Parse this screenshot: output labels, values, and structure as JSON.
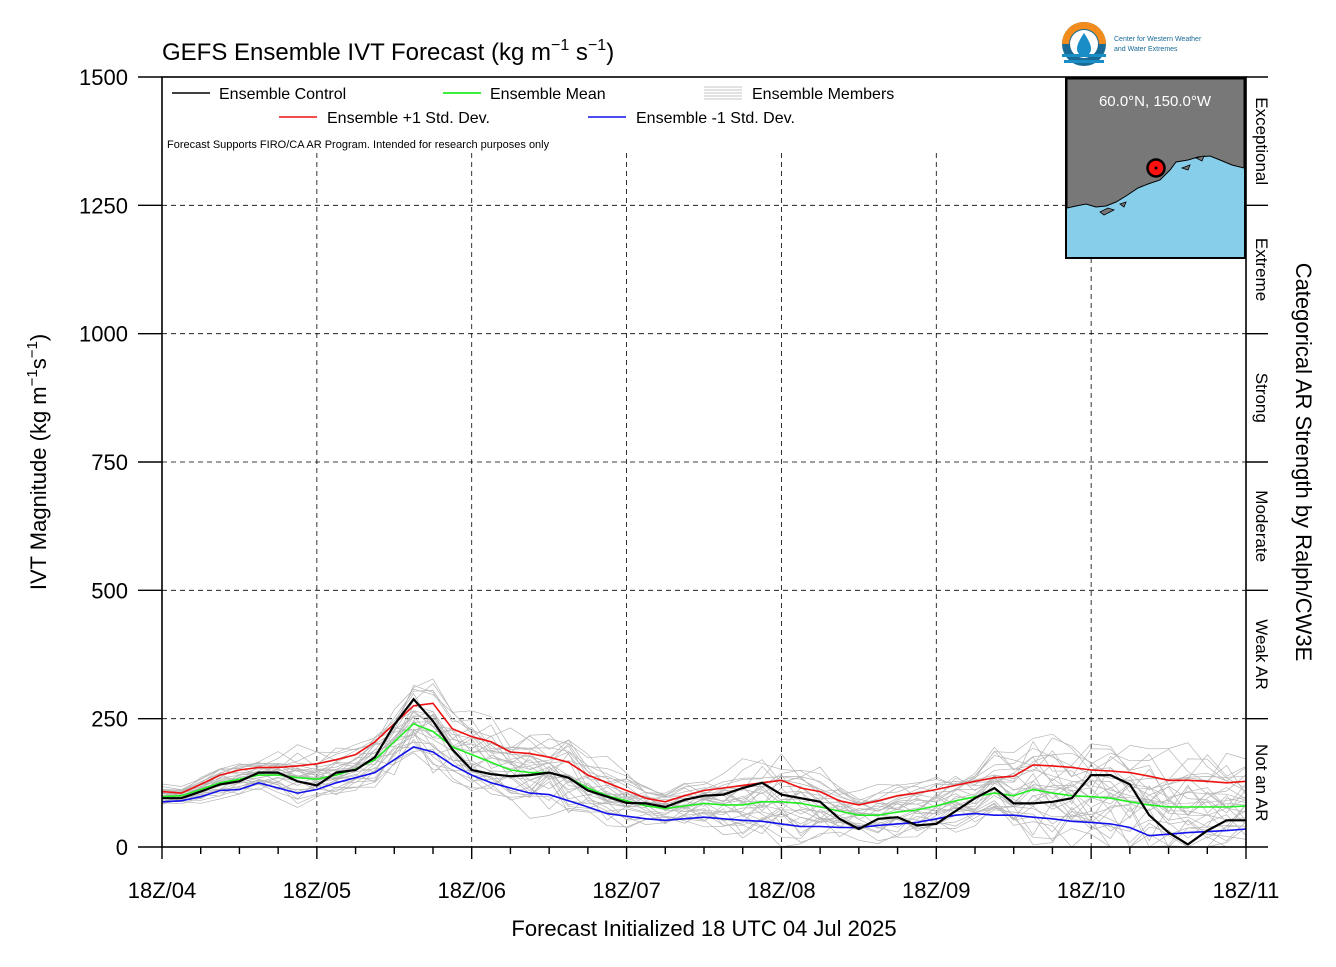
{
  "chart_data": {
    "type": "line",
    "title": "GEFS Ensemble IVT Forecast (kg m",
    "title_sup1": "−1",
    "title_mid": " s",
    "title_sup2": "−1",
    "title_end": ")",
    "xlabel": "Forecast Initialized 18 UTC 04 Jul 2025",
    "ylabel": "IVT Magnitude (kg m",
    "ylabel_sup1": "−1",
    "ylabel_mid": "s",
    "ylabel_sup2": "−1",
    "ylabel_end": ")",
    "right_label": "Categorical AR Strength by Ralph/CW3E",
    "note": "Forecast Supports FIRO/CA AR Program. Intended for research purposes only",
    "ylim": [
      0,
      1500
    ],
    "xlim": [
      0,
      168
    ],
    "y_ticks": [
      0,
      250,
      500,
      750,
      1000,
      1250,
      1500
    ],
    "y_tick_labels": [
      "0",
      "250",
      "500",
      "750",
      "1000",
      "1250",
      "1500"
    ],
    "x_ticks": [
      0,
      24,
      48,
      72,
      96,
      120,
      144,
      168
    ],
    "x_tick_labels": [
      "18Z/04",
      "18Z/05",
      "18Z/06",
      "18Z/07",
      "18Z/08",
      "18Z/09",
      "18Z/10",
      "18Z/11"
    ],
    "grid": true,
    "legend": [
      {
        "name": "Ensemble Control",
        "color": "#000000"
      },
      {
        "name": "Ensemble Mean",
        "color": "#22ee22"
      },
      {
        "name": "Ensemble Members",
        "color": "#b0b0b0"
      },
      {
        "name": "Ensemble +1 Std. Dev.",
        "color": "#ee1111"
      },
      {
        "name": "Ensemble -1 Std. Dev.",
        "color": "#1111ee"
      }
    ],
    "legend_position": "top-left",
    "categories_right": [
      {
        "label": "Not an AR",
        "range": [
          0,
          250
        ]
      },
      {
        "label": "Weak AR",
        "range": [
          250,
          500
        ]
      },
      {
        "label": "Moderate",
        "range": [
          500,
          750
        ]
      },
      {
        "label": "Strong",
        "range": [
          750,
          1000
        ]
      },
      {
        "label": "Extreme",
        "range": [
          1000,
          1250
        ]
      },
      {
        "label": "Exceptional",
        "range": [
          1250,
          1500
        ]
      }
    ],
    "inset_map": {
      "label": "60.0°N, 150.0°W",
      "position": "top-right"
    },
    "logo_text_1": "Center for Western Weather",
    "logo_text_2": "and Water Extremes",
    "x": [
      0,
      3,
      6,
      9,
      12,
      15,
      18,
      21,
      24,
      27,
      30,
      33,
      36,
      39,
      42,
      45,
      48,
      51,
      54,
      57,
      60,
      63,
      66,
      69,
      72,
      75,
      78,
      81,
      84,
      87,
      90,
      93,
      96,
      99,
      102,
      105,
      108,
      111,
      114,
      117,
      120,
      123,
      126,
      129,
      132,
      135,
      138,
      141,
      144,
      147,
      150,
      153,
      156,
      159,
      162,
      165,
      168
    ],
    "series": [
      {
        "name": "Ensemble Control",
        "color": "#000000",
        "values": [
          95,
          95,
          108,
          122,
          128,
          145,
          145,
          128,
          120,
          145,
          150,
          175,
          238,
          288,
          245,
          190,
          150,
          142,
          138,
          140,
          145,
          135,
          110,
          98,
          86,
          85,
          78,
          92,
          100,
          102,
          115,
          125,
          102,
          95,
          88,
          55,
          35,
          55,
          58,
          42,
          45,
          70,
          95,
          115,
          85,
          85,
          88,
          95,
          140,
          140,
          122,
          62,
          28,
          5,
          32,
          52,
          52
        ]
      },
      {
        "name": "Ensemble Mean",
        "color": "#22ee22",
        "values": [
          98,
          100,
          112,
          125,
          132,
          140,
          140,
          135,
          132,
          140,
          152,
          170,
          205,
          240,
          225,
          195,
          180,
          165,
          150,
          145,
          145,
          135,
          115,
          100,
          90,
          80,
          75,
          80,
          85,
          82,
          82,
          88,
          88,
          85,
          78,
          70,
          62,
          62,
          68,
          72,
          80,
          90,
          98,
          105,
          100,
          112,
          105,
          100,
          98,
          95,
          88,
          82,
          78,
          78,
          78,
          78,
          80
        ]
      },
      {
        "name": "Ensemble +1 Std. Dev.",
        "color": "#ee1111",
        "values": [
          108,
          105,
          122,
          140,
          150,
          155,
          155,
          158,
          162,
          170,
          180,
          205,
          240,
          275,
          280,
          230,
          215,
          205,
          185,
          182,
          175,
          165,
          140,
          125,
          110,
          95,
          88,
          100,
          110,
          115,
          120,
          125,
          130,
          115,
          108,
          90,
          82,
          90,
          100,
          105,
          112,
          120,
          128,
          135,
          138,
          160,
          158,
          155,
          150,
          148,
          145,
          138,
          130,
          130,
          128,
          125,
          128
        ]
      },
      {
        "name": "Ensemble -1 Std. Dev.",
        "color": "#1111ee",
        "values": [
          88,
          90,
          98,
          110,
          112,
          125,
          115,
          105,
          112,
          125,
          135,
          145,
          170,
          195,
          185,
          160,
          140,
          125,
          115,
          105,
          102,
          90,
          78,
          65,
          60,
          55,
          52,
          55,
          58,
          55,
          52,
          50,
          45,
          40,
          40,
          38,
          38,
          42,
          45,
          48,
          55,
          62,
          65,
          62,
          62,
          58,
          55,
          50,
          48,
          45,
          38,
          22,
          25,
          28,
          30,
          32,
          35
        ]
      }
    ]
  }
}
